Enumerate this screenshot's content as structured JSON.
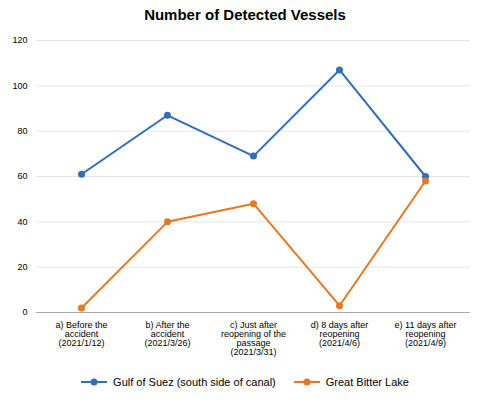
{
  "chart_data": {
    "type": "line",
    "title": "Number of Detected Vessels",
    "categories": [
      "a) Before the\naccident\n(2021/1/12)",
      "b) After the\naccident\n(2021/3/26)",
      "c) Just after\nreopening of the\npassage\n(2021/3/31)",
      "d) 8 days after\nreopening\n(2021/4/6)",
      "e) 11 days after\nreopening\n(2021/4/9)"
    ],
    "series": [
      {
        "name": "Gulf of Suez (south side of canal)",
        "color": "#2E6EBF",
        "values": [
          61,
          87,
          69,
          107,
          60
        ],
        "marker": "circle"
      },
      {
        "name": "Great Bitter Lake",
        "color": "#E87722",
        "values": [
          2,
          40,
          48,
          3,
          58
        ],
        "marker": "circle"
      }
    ],
    "ylim": [
      0,
      120
    ],
    "yticks": [
      0,
      20,
      40,
      60,
      80,
      100,
      120
    ],
    "grid": true,
    "legend": "bottom"
  }
}
